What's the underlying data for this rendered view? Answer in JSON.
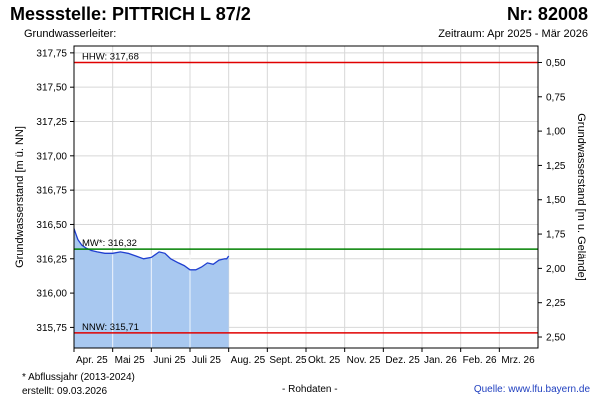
{
  "header": {
    "title": "Messstelle: PITTRICH L 87/2",
    "station_number": "Nr: 82008",
    "subtitle": "Grundwasserleiter:",
    "period": "Zeitraum: Apr 2025 - Mär 2026"
  },
  "footer": {
    "note": "* Abflussjahr (2013-2024)",
    "created": "erstellt:  09.03.2026",
    "raw": "- Rohdaten -",
    "source": "Quelle: www.lfu.bayern.de"
  },
  "chart_data": {
    "type": "area",
    "ylabel": "Grundwasserstand [m ü. NN]",
    "ylabel_right": "Grundwasserstand [m u. Gelände]",
    "ylim": [
      315.6,
      317.8
    ],
    "y_ticks": [
      "315,75",
      "316,00",
      "316,25",
      "316,50",
      "316,75",
      "317,00",
      "317,25",
      "317,50",
      "317,75"
    ],
    "y_tick_values": [
      315.75,
      316.0,
      316.25,
      316.5,
      316.75,
      317.0,
      317.25,
      317.5,
      317.75
    ],
    "y_right_ticks": [
      "0,50",
      "0,75",
      "1,00",
      "1,25",
      "1,50",
      "1,75",
      "2,00",
      "2,25",
      "2,50"
    ],
    "y_right_tick_values": [
      317.68,
      317.43,
      317.18,
      316.93,
      316.68,
      316.43,
      316.18,
      315.93,
      315.68
    ],
    "x_ticks": [
      "Apr. 25",
      "Mai 25",
      "Juni 25",
      "Juli 25",
      "Aug. 25",
      "Sept. 25",
      "Okt. 25",
      "Nov. 25",
      "Dez. 25",
      "Jan. 26",
      "Feb. 26",
      "Mrz. 26"
    ],
    "x_range_months": [
      0,
      12
    ],
    "grid": true,
    "reference_lines": [
      {
        "label": "HHW: 317,68",
        "value": 317.68,
        "color": "#e00000"
      },
      {
        "label": "MW*: 316,32",
        "value": 316.32,
        "color": "#008000"
      },
      {
        "label": "NNW: 315,71",
        "value": 315.71,
        "color": "#e00000"
      }
    ],
    "series": [
      {
        "values_month": [
          0.0,
          0.05,
          0.1,
          0.2,
          0.3,
          0.45,
          0.6,
          0.8,
          1.0,
          1.2,
          1.4,
          1.6,
          1.8,
          2.0,
          2.1,
          2.2,
          2.35,
          2.5,
          2.7,
          2.85,
          3.0,
          3.15,
          3.3,
          3.45,
          3.6,
          3.75,
          3.9,
          3.95,
          4.0
        ],
        "values": [
          316.47,
          316.43,
          316.39,
          316.35,
          316.33,
          316.31,
          316.3,
          316.29,
          316.29,
          316.3,
          316.29,
          316.27,
          316.25,
          316.26,
          316.28,
          316.3,
          316.29,
          316.25,
          316.22,
          316.2,
          316.17,
          316.17,
          316.19,
          316.22,
          316.21,
          316.24,
          316.25,
          316.25,
          316.27
        ],
        "line_color": "#1f3fd0",
        "fill_color": "#a8c8f0"
      }
    ],
    "colors": {
      "grid": "#d8d8d8",
      "frame": "#000000",
      "vertical_highlight": "#ffffff"
    }
  }
}
